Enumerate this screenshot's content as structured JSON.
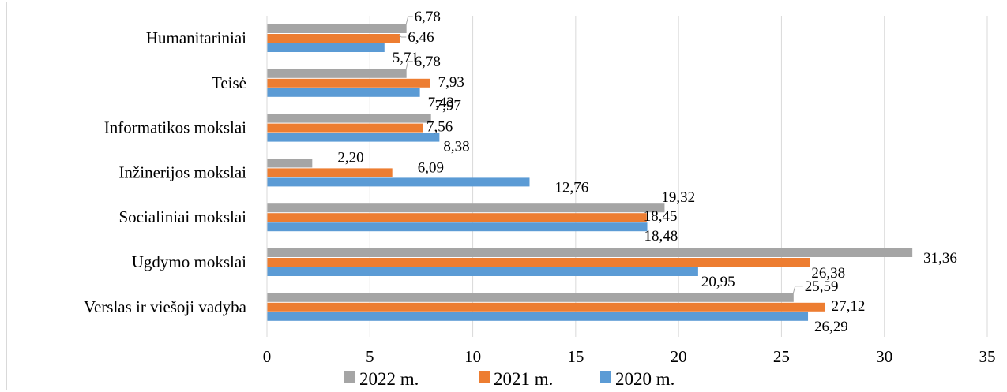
{
  "chart_data": {
    "type": "bar",
    "orientation": "horizontal",
    "categories": [
      "Humanitariniai",
      "Teisė",
      "Informatikos mokslai",
      "Inžinerijos mokslai",
      "Socialiniai mokslai",
      "Ugdymo mokslai",
      "Verslas ir viešoji vadyba"
    ],
    "series": [
      {
        "name": "2022 m.",
        "color": "#a5a5a5",
        "values": [
          6.78,
          6.78,
          7.97,
          2.2,
          19.32,
          31.36,
          25.59
        ],
        "labels": [
          "6,78",
          "6,78",
          "7,97",
          "2,20",
          "19,32",
          "31,36",
          "25,59"
        ]
      },
      {
        "name": "2021 m.",
        "color": "#ed7d31",
        "values": [
          6.46,
          7.93,
          7.56,
          6.09,
          18.45,
          26.38,
          27.12
        ],
        "labels": [
          "6,46",
          "7,93",
          "7,56",
          "6,09",
          "18,45",
          "26,38",
          "27,12"
        ]
      },
      {
        "name": "2020 m.",
        "color": "#5b9bd5",
        "values": [
          5.71,
          7.43,
          8.38,
          12.76,
          18.48,
          20.95,
          26.29
        ],
        "labels": [
          "5,71",
          "7,43",
          "8,38",
          "12,76",
          "18,48",
          "20,95",
          "26,29"
        ]
      }
    ],
    "xlim": [
      0,
      35
    ],
    "xticks": [
      "0",
      "5",
      "10",
      "15",
      "20",
      "25",
      "30",
      "35"
    ],
    "grid": true,
    "legend": "bottom",
    "title": "",
    "xlabel": "",
    "ylabel": ""
  }
}
